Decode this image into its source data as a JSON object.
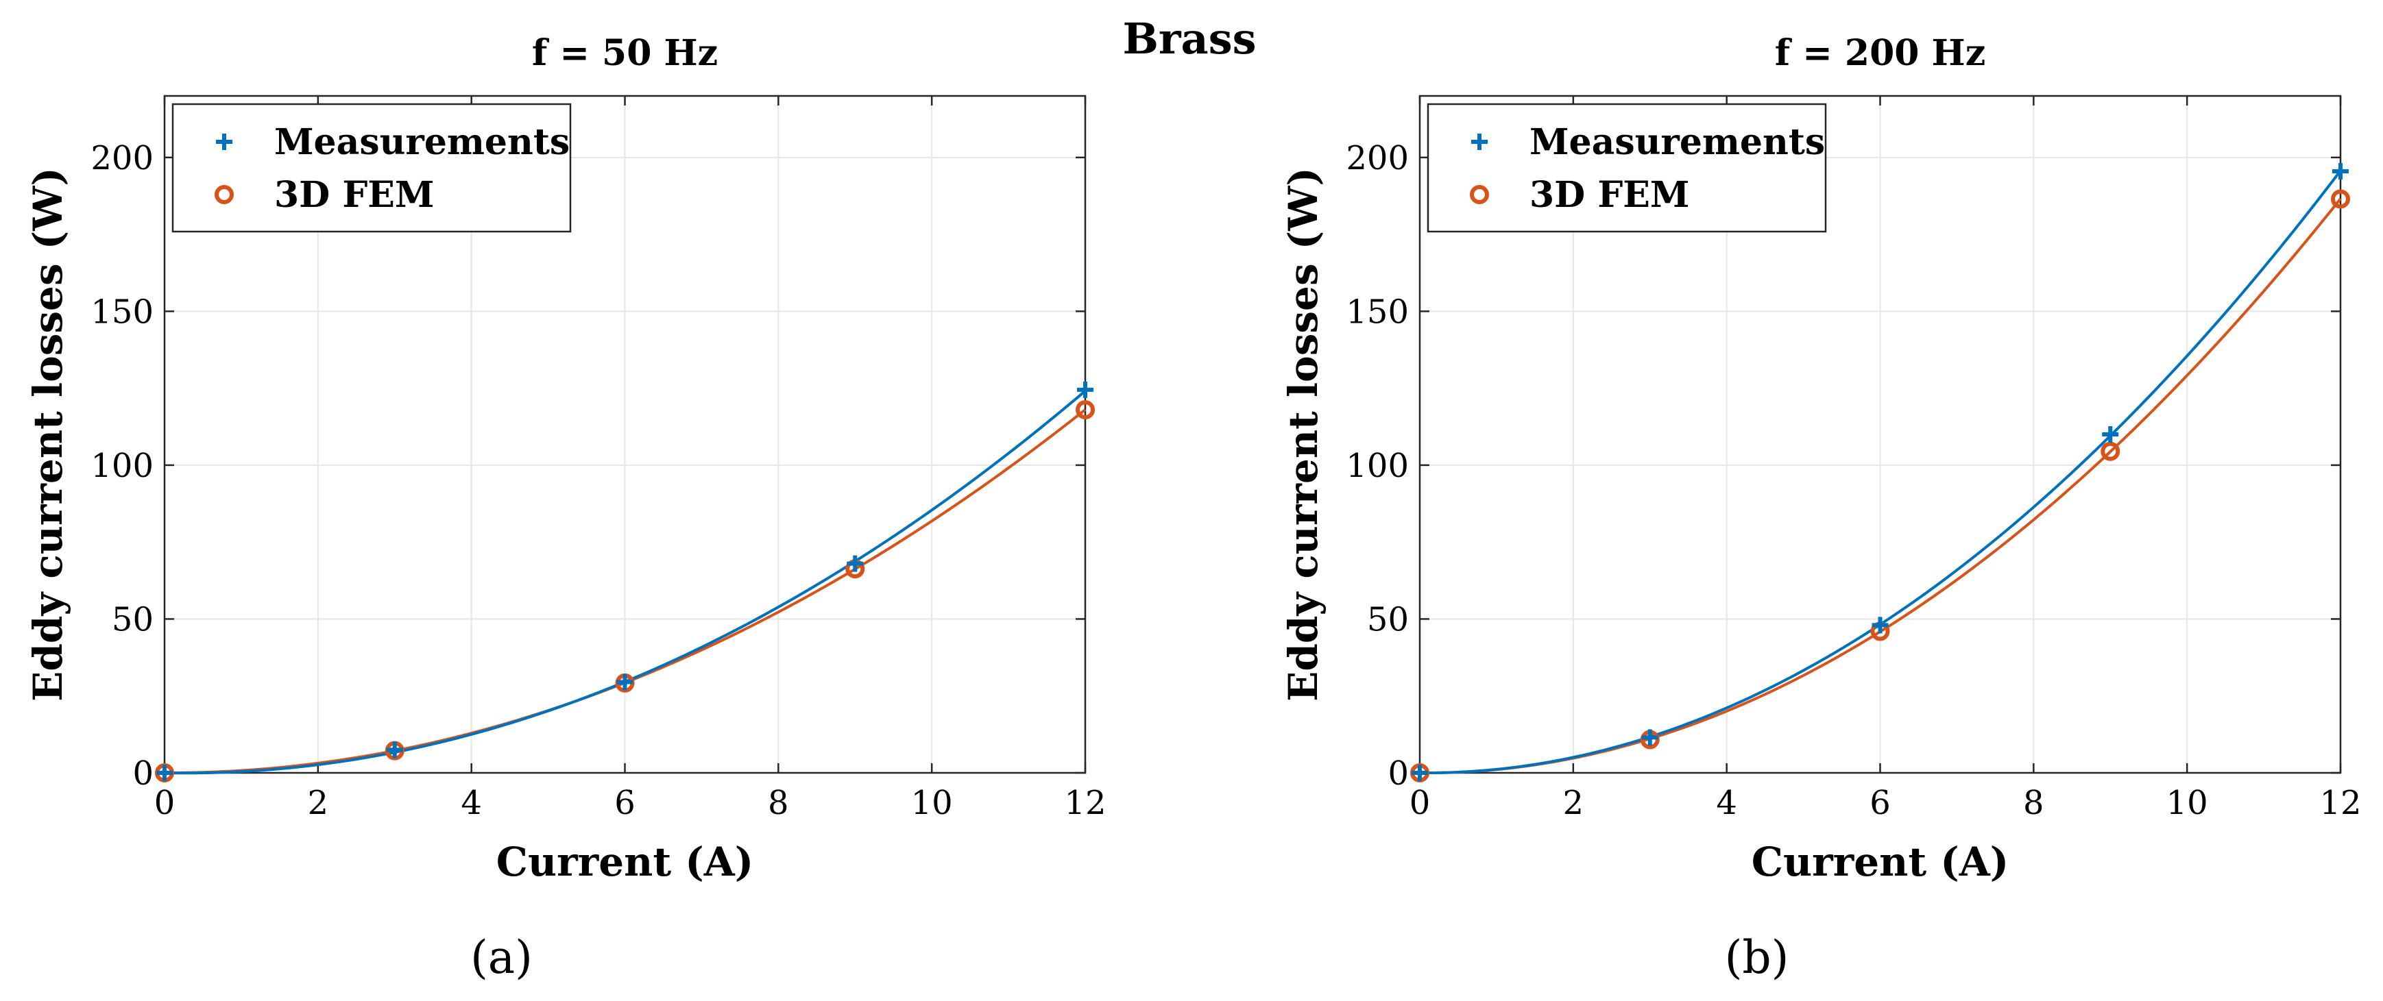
{
  "figure_title": "Brass",
  "colors": {
    "measurements": "#0072BD",
    "fem": "#D95319",
    "grid": "#e6e6e6",
    "axis": "#262626"
  },
  "chart_data": [
    {
      "type": "line",
      "panel_label": "(a)",
      "title": "f = 50 Hz",
      "xlabel": "Current (A)",
      "ylabel": "Eddy current losses (W)",
      "xlim": [
        0,
        12
      ],
      "ylim": [
        0,
        220
      ],
      "xticks": [
        0,
        2,
        4,
        6,
        8,
        10,
        12
      ],
      "yticks": [
        0,
        50,
        100,
        150,
        200
      ],
      "grid": true,
      "legend_position": "top-left",
      "series": [
        {
          "name": "Measurements",
          "marker": "plus",
          "color": "#0072BD",
          "x": [
            0,
            3,
            6,
            9,
            12
          ],
          "y": [
            0,
            7.5,
            29.5,
            68,
            124.5
          ]
        },
        {
          "name": "3D FEM",
          "marker": "circle",
          "color": "#D95319",
          "x": [
            0,
            3,
            6,
            9,
            12
          ],
          "y": [
            0,
            7.2,
            29.2,
            66.3,
            118
          ]
        }
      ]
    },
    {
      "type": "line",
      "panel_label": "(b)",
      "title": "f = 200 Hz",
      "xlabel": "Current (A)",
      "ylabel": "Eddy current losses (W)",
      "xlim": [
        0,
        12
      ],
      "ylim": [
        0,
        220
      ],
      "xticks": [
        0,
        2,
        4,
        6,
        8,
        10,
        12
      ],
      "yticks": [
        0,
        50,
        100,
        150,
        200
      ],
      "grid": true,
      "legend_position": "top-left",
      "series": [
        {
          "name": "Measurements",
          "marker": "plus",
          "color": "#0072BD",
          "x": [
            0,
            3,
            6,
            9,
            12
          ],
          "y": [
            0,
            11.5,
            48,
            110,
            195.5
          ]
        },
        {
          "name": "3D FEM",
          "marker": "circle",
          "color": "#D95319",
          "x": [
            0,
            3,
            6,
            9,
            12
          ],
          "y": [
            0,
            10.8,
            46,
            104.5,
            186.5
          ]
        }
      ]
    }
  ]
}
